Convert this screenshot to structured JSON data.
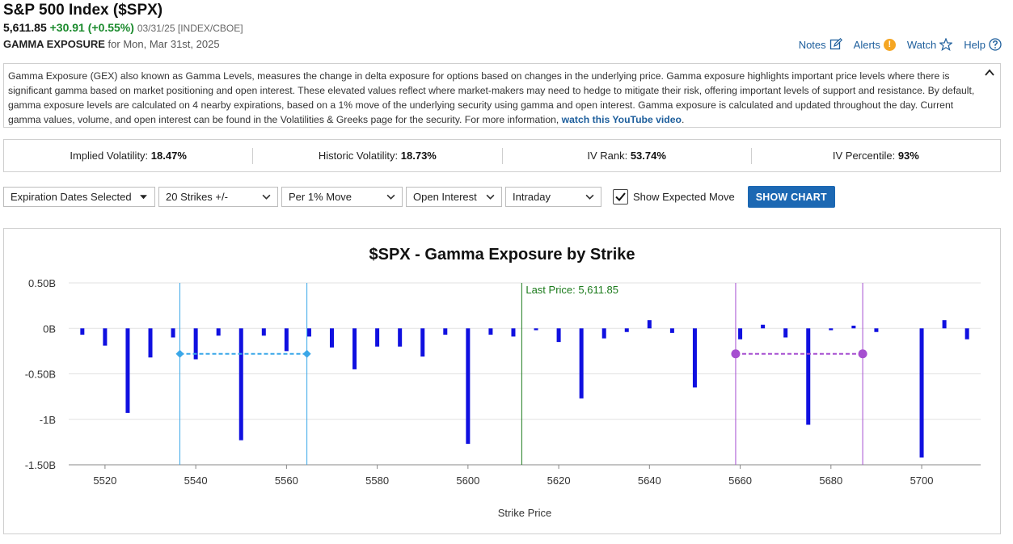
{
  "header": {
    "title": "S&P 500 Index ($SPX)",
    "last": "5,611.85",
    "change": "+30.91 (+0.55%)",
    "meta": "03/31/25 [INDEX/CBOE]",
    "gex_label": "GAMMA EXPOSURE",
    "gex_for": "for Mon, Mar 31st, 2025"
  },
  "toplinks": {
    "notes": "Notes",
    "alerts": "Alerts",
    "alerts_badge": "!",
    "watch": "Watch",
    "help": "Help"
  },
  "description": {
    "text": "Gamma Exposure (GEX) also known as Gamma Levels, measures the change in delta exposure for options based on changes in the underlying price. Gamma exposure highlights important price levels where there is significant gamma based on market positioning and open interest. These elevated values reflect where market-makers may need to hedge to mitigate their risk, offering important levels of support and resistance. By default, gamma exposure levels are calculated on 4 nearby expirations, based on a 1% move of the underlying security using gamma and open interest. Gamma exposure is calculated and updated throughout the day. Current gamma values, volume, and open interest can be found in the Volatilities & Greeks page for the security. For more information,",
    "link": "watch this YouTube video",
    "end": "."
  },
  "stats": [
    {
      "label": "Implied Volatility:",
      "value": "18.47%"
    },
    {
      "label": "Historic Volatility:",
      "value": "18.73%"
    },
    {
      "label": "IV Rank:",
      "value": "53.74%"
    },
    {
      "label": "IV Percentile:",
      "value": "93%"
    }
  ],
  "controls": {
    "expirations": "Expiration Dates Selected",
    "strikes": "20 Strikes +/-",
    "move": "Per 1% Move",
    "basis": "Open Interest",
    "period": "Intraday",
    "show_expected": "Show Expected Move",
    "show_chart": "SHOW CHART"
  },
  "chart_data": {
    "type": "bar",
    "title": "$SPX - Gamma Exposure by Strike",
    "xlabel": "Strike Price",
    "ylabel": "",
    "xlim": [
      5512,
      5713
    ],
    "ylim": [
      -1.5,
      0.5
    ],
    "y_ticks": [
      0.5,
      0,
      -0.5,
      -1,
      -1.5
    ],
    "y_tick_labels": [
      "0.50B",
      "0B",
      "-0.50B",
      "-1B",
      "-1.50B"
    ],
    "x_ticks": [
      5520,
      5540,
      5560,
      5580,
      5600,
      5620,
      5640,
      5660,
      5680,
      5700
    ],
    "grid": true,
    "bar_color": "#1010e0",
    "strikes": [
      5515,
      5520,
      5525,
      5530,
      5535,
      5540,
      5545,
      5550,
      5555,
      5560,
      5565,
      5570,
      5575,
      5580,
      5585,
      5590,
      5595,
      5600,
      5605,
      5610,
      5615,
      5620,
      5625,
      5630,
      5635,
      5640,
      5645,
      5650,
      5655,
      5660,
      5665,
      5670,
      5675,
      5680,
      5685,
      5690,
      5695,
      5700,
      5705,
      5710
    ],
    "values": [
      -0.07,
      -0.19,
      -0.93,
      -0.32,
      -0.1,
      -0.34,
      -0.08,
      -1.23,
      -0.08,
      -0.25,
      -0.09,
      -0.21,
      -0.45,
      -0.2,
      -0.2,
      -0.31,
      -0.07,
      -1.27,
      -0.07,
      -0.09,
      -0.02,
      -0.15,
      -0.77,
      -0.11,
      -0.04,
      0.09,
      -0.05,
      -0.65,
      0,
      -0.12,
      0.04,
      -0.1,
      -1.06,
      -0.02,
      0.03,
      -0.04,
      0,
      -1.42,
      0.09,
      -0.12
    ],
    "last_price": {
      "label": "Last Price: 5,611.85",
      "value": 5611.85,
      "color": "#1a7a1a"
    },
    "expected_moves": [
      {
        "low": 5536.5,
        "high": 5564.5,
        "y": -0.28,
        "color": "#3aa7e8"
      },
      {
        "low": 5659,
        "high": 5687,
        "y": -0.28,
        "color": "#a64fd0"
      }
    ]
  }
}
